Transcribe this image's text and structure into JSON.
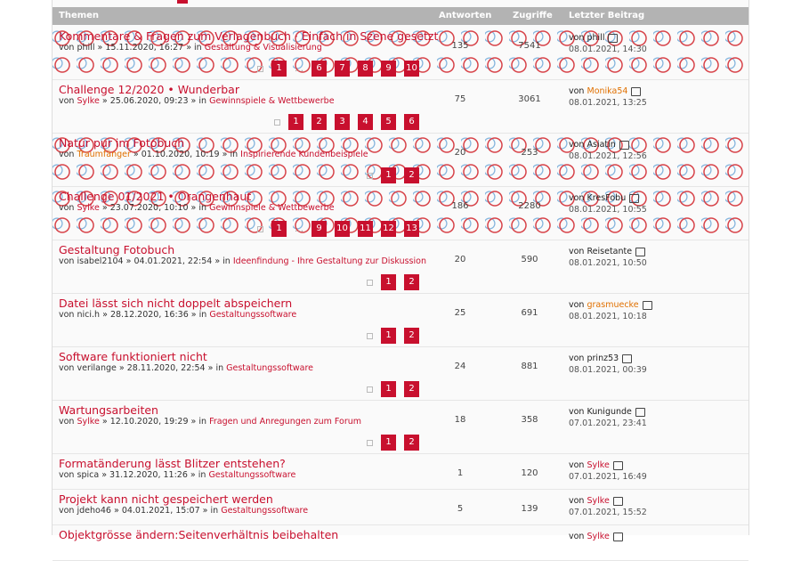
{
  "header": {
    "topics": "Themen",
    "replies": "Antworten",
    "views": "Zugriffe",
    "last": "Letzter Beitrag"
  },
  "labels": {
    "by": "von",
    "sep": "»",
    "in": "in",
    "more": "…"
  },
  "topics": [
    {
      "title": "Kommentare & Fragen zum Verlagenbuch · Einfach in Szene gesetzt",
      "author": "phill",
      "date": "15.11.2020, 16:27",
      "forum": "Gestaltung & Visualisierung",
      "replies": 135,
      "views": 7541,
      "last_by": "phill",
      "last_date": "08.01.2021, 14:30",
      "pages": [
        "1",
        "…",
        "6",
        "7",
        "8",
        "9",
        "10"
      ],
      "pattern": true
    },
    {
      "title": "Challenge 12/2020 • Wunderbar",
      "author": "Sylke",
      "author_color": "#c8102e",
      "date": "25.06.2020, 09:23",
      "forum": "Gewinnspiele & Wettbewerbe",
      "replies": 75,
      "views": 3061,
      "last_by": "Monika54",
      "last_color": "#e07000",
      "last_date": "08.01.2021, 13:25",
      "pages": [
        "1",
        "2",
        "3",
        "4",
        "5",
        "6"
      ]
    },
    {
      "title": "Natur pur im Fotobuch",
      "author": "Traumfänger",
      "author_color": "#e07000",
      "date": "01.10.2020, 10:19",
      "forum": "Inspirierende Kundenbeispiele",
      "replies": 20,
      "views": 253,
      "last_by": "Asiatin",
      "last_date": "08.01.2021, 12:56",
      "pages": [
        "1",
        "2"
      ],
      "pattern": true
    },
    {
      "title": "Challenge 01/2021 • Orangenhaut",
      "author": "Sylke",
      "author_color": "#c8102e",
      "date": "23.07.2020, 10:10",
      "forum": "Gewinnspiele & Wettbewerbe",
      "replies": 186,
      "views": 2280,
      "last_by": "KresFobu",
      "last_date": "08.01.2021, 10:55",
      "pages": [
        "1",
        "…",
        "9",
        "10",
        "11",
        "12",
        "13"
      ],
      "pattern": true
    },
    {
      "title": "Gestaltung Fotobuch",
      "author": "isabel2104",
      "date": "04.01.2021, 22:54",
      "forum": "Ideenfindung - Ihre Gestaltung zur Diskussion",
      "replies": 20,
      "views": 590,
      "last_by": "Reisetante",
      "last_date": "08.01.2021, 10:50",
      "pages": [
        "1",
        "2"
      ]
    },
    {
      "title": "Datei lässt sich nicht doppelt abspeichern",
      "author": "nici.h",
      "date": "28.12.2020, 16:36",
      "forum": "Gestaltungssoftware",
      "replies": 25,
      "views": 691,
      "last_by": "grasmuecke",
      "last_color": "#e07000",
      "last_date": "08.01.2021, 10:18",
      "pages": [
        "1",
        "2"
      ]
    },
    {
      "title": "Software funktioniert nicht",
      "author": "verilange",
      "date": "28.11.2020, 22:54",
      "forum": "Gestaltungssoftware",
      "replies": 24,
      "views": 881,
      "last_by": "prinz53",
      "last_date": "08.01.2021, 00:39",
      "pages": [
        "1",
        "2"
      ]
    },
    {
      "title": "Wartungsarbeiten",
      "author": "Sylke",
      "author_color": "#c8102e",
      "date": "12.10.2020, 19:29",
      "forum": "Fragen und Anregungen zum Forum",
      "replies": 18,
      "views": 358,
      "last_by": "Kunigunde",
      "last_date": "07.01.2021, 23:41",
      "pages": [
        "1",
        "2"
      ]
    },
    {
      "title": "Formatänderung lässt Blitzer entstehen?",
      "author": "spica",
      "date": "31.12.2020, 11:26",
      "forum": "Gestaltungssoftware",
      "replies": 1,
      "views": 120,
      "last_by": "Sylke",
      "last_color": "#c8102e",
      "last_date": "07.01.2021, 16:49"
    },
    {
      "title": "Projekt kann nicht gespeichert werden",
      "author": "jdeho46",
      "date": "04.01.2021, 15:07",
      "forum": "Gestaltungssoftware",
      "replies": 5,
      "views": 139,
      "last_by": "Sylke",
      "last_color": "#c8102e",
      "last_date": "07.01.2021, 15:52"
    },
    {
      "title": "Objektgrösse ändern:Seitenverhältnis beibehalten",
      "last_by": "Sylke",
      "last_color": "#c8102e"
    }
  ]
}
